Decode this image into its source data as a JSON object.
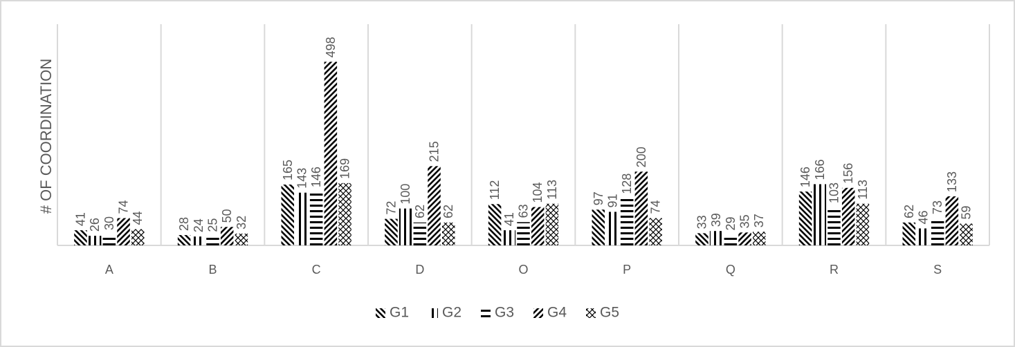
{
  "chart_data": {
    "type": "bar",
    "y_label": "# OF COORDINATION",
    "categories": [
      "A",
      "B",
      "C",
      "D",
      "O",
      "P",
      "Q",
      "R",
      "S"
    ],
    "series": [
      {
        "name": "G1",
        "color": "#000000",
        "values": [
          41,
          28,
          165,
          72,
          112,
          97,
          33,
          146,
          62
        ]
      },
      {
        "name": "G2",
        "color": "#000000",
        "values": [
          26,
          24,
          143,
          100,
          41,
          91,
          39,
          166,
          46
        ]
      },
      {
        "name": "G3",
        "color": "#000000",
        "values": [
          30,
          25,
          146,
          62,
          63,
          128,
          29,
          103,
          73
        ]
      },
      {
        "name": "G4",
        "color": "#000000",
        "values": [
          74,
          50,
          498,
          215,
          104,
          200,
          35,
          156,
          133
        ]
      },
      {
        "name": "G5",
        "color": "#000000",
        "values": [
          44,
          32,
          169,
          62,
          113,
          74,
          37,
          113,
          59
        ]
      }
    ],
    "ylim": [
      0,
      600
    ],
    "legend": "bottom"
  }
}
